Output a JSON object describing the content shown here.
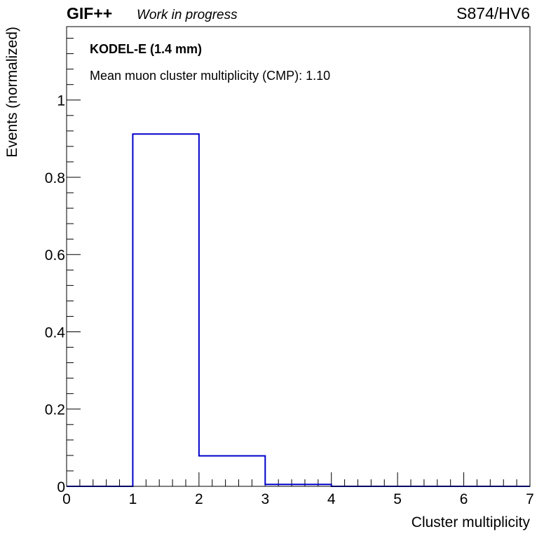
{
  "header": {
    "experiment": "GIF++",
    "status": "Work in progress",
    "run_label": "S874/HV6"
  },
  "annotations": {
    "detector": "KODEL-E (1.4 mm)",
    "cmp_text": "Mean muon cluster multiplicity (CMP): 1.10"
  },
  "chart_data": {
    "type": "bar",
    "style": "step-histogram",
    "title": "",
    "xlabel": "Cluster multiplicity",
    "ylabel": "Events (normalized)",
    "bin_edges": [
      0,
      1,
      2,
      3,
      4,
      5,
      6,
      7
    ],
    "values": [
      0,
      0.912,
      0.079,
      0.005,
      0,
      0,
      0
    ],
    "xlim": [
      0,
      7
    ],
    "ylim": [
      0,
      1.19
    ],
    "x_ticks": [
      "0",
      "1",
      "2",
      "3",
      "4",
      "5",
      "6",
      "7"
    ],
    "y_ticks": [
      "0",
      "0.2",
      "0.4",
      "0.6",
      "0.8",
      "1"
    ],
    "line_color": "#0000cc",
    "grid": false,
    "legend": "none"
  }
}
